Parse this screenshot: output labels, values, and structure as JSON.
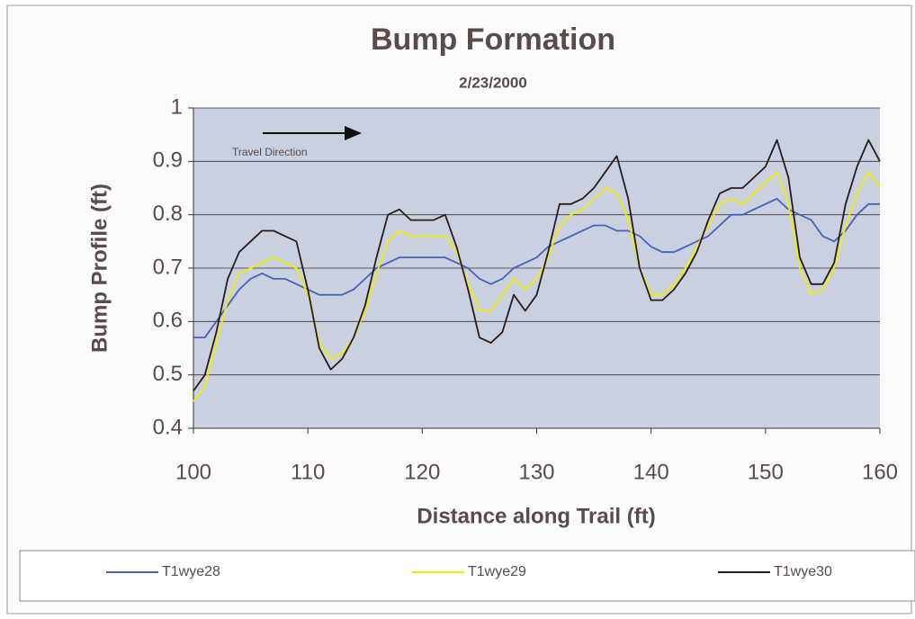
{
  "chart_data": {
    "type": "line",
    "title": "Bump Formation",
    "subtitle": "2/23/2000",
    "x_label": "Distance along Trail (ft)",
    "y_label": "Bump Profile (ft)",
    "annotation": "Travel Direction",
    "x": [
      100,
      101,
      102,
      103,
      104,
      105,
      106,
      107,
      108,
      109,
      110,
      111,
      112,
      113,
      114,
      115,
      116,
      117,
      118,
      119,
      120,
      121,
      122,
      123,
      124,
      125,
      126,
      127,
      128,
      129,
      130,
      131,
      132,
      133,
      134,
      135,
      136,
      137,
      138,
      139,
      140,
      141,
      142,
      143,
      144,
      145,
      146,
      147,
      148,
      149,
      150,
      151,
      152,
      153,
      154,
      155,
      156,
      157,
      158,
      159,
      160
    ],
    "series": [
      {
        "name": "T1wye28",
        "color": "#4a5fb8",
        "values": [
          0.57,
          0.57,
          0.6,
          0.63,
          0.66,
          0.68,
          0.69,
          0.68,
          0.68,
          0.67,
          0.66,
          0.65,
          0.65,
          0.65,
          0.66,
          0.68,
          0.7,
          0.71,
          0.72,
          0.72,
          0.72,
          0.72,
          0.72,
          0.71,
          0.7,
          0.68,
          0.67,
          0.68,
          0.7,
          0.71,
          0.72,
          0.74,
          0.75,
          0.76,
          0.77,
          0.78,
          0.78,
          0.77,
          0.77,
          0.76,
          0.74,
          0.73,
          0.73,
          0.74,
          0.75,
          0.76,
          0.78,
          0.8,
          0.8,
          0.81,
          0.82,
          0.83,
          0.81,
          0.8,
          0.79,
          0.76,
          0.75,
          0.77,
          0.8,
          0.82,
          0.82
        ]
      },
      {
        "name": "T1wye29",
        "color": "#f2ee00",
        "values": [
          0.45,
          0.48,
          0.56,
          0.64,
          0.69,
          0.7,
          0.71,
          0.72,
          0.71,
          0.7,
          0.65,
          0.56,
          0.53,
          0.54,
          0.57,
          0.62,
          0.69,
          0.75,
          0.77,
          0.76,
          0.76,
          0.76,
          0.76,
          0.73,
          0.67,
          0.62,
          0.62,
          0.65,
          0.68,
          0.66,
          0.68,
          0.72,
          0.78,
          0.8,
          0.81,
          0.83,
          0.85,
          0.84,
          0.79,
          0.7,
          0.65,
          0.65,
          0.67,
          0.7,
          0.74,
          0.78,
          0.82,
          0.83,
          0.82,
          0.84,
          0.86,
          0.88,
          0.82,
          0.7,
          0.65,
          0.66,
          0.7,
          0.78,
          0.84,
          0.88,
          0.85
        ]
      },
      {
        "name": "T1wye30",
        "color": "#2a1a1a",
        "values": [
          0.47,
          0.5,
          0.58,
          0.68,
          0.73,
          0.75,
          0.77,
          0.77,
          0.76,
          0.75,
          0.66,
          0.55,
          0.51,
          0.53,
          0.57,
          0.63,
          0.72,
          0.8,
          0.81,
          0.79,
          0.79,
          0.79,
          0.8,
          0.74,
          0.66,
          0.57,
          0.56,
          0.58,
          0.65,
          0.62,
          0.65,
          0.73,
          0.82,
          0.82,
          0.83,
          0.85,
          0.88,
          0.91,
          0.83,
          0.7,
          0.64,
          0.64,
          0.66,
          0.69,
          0.73,
          0.79,
          0.84,
          0.85,
          0.85,
          0.87,
          0.89,
          0.94,
          0.87,
          0.72,
          0.67,
          0.67,
          0.71,
          0.82,
          0.89,
          0.94,
          0.9
        ]
      }
    ],
    "xlim": [
      100,
      160
    ],
    "xticks": [
      100,
      110,
      120,
      130,
      140,
      150,
      160
    ],
    "ylim": [
      0.4,
      1
    ],
    "yticks": [
      0.4,
      0.5,
      0.6,
      0.7,
      0.8,
      0.9,
      1
    ],
    "grid": true,
    "legend": "bottom"
  }
}
